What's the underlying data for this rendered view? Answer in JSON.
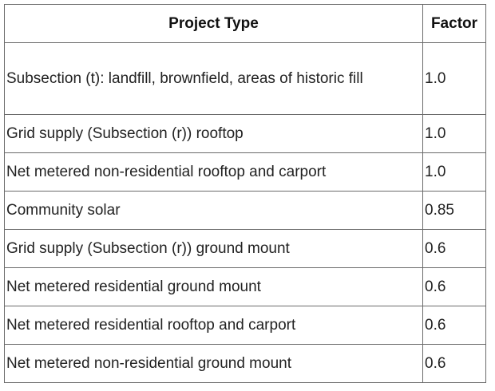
{
  "table": {
    "headers": {
      "type": "Project Type",
      "factor": "Factor"
    },
    "rows": [
      {
        "type": "Subsection (t): landfill, brownfield, areas of historic fill",
        "factor": "1.0"
      },
      {
        "type": "Grid supply (Subsection (r)) rooftop",
        "factor": "1.0"
      },
      {
        "type": "Net metered non-residential rooftop and carport",
        "factor": "1.0"
      },
      {
        "type": "Community solar",
        "factor": "0.85"
      },
      {
        "type": "Grid supply (Subsection (r)) ground mount",
        "factor": "0.6"
      },
      {
        "type": "Net metered residential ground mount",
        "factor": "0.6"
      },
      {
        "type": "Net metered residential rooftop and carport",
        "factor": "0.6"
      },
      {
        "type": "Net metered non-residential ground mount",
        "factor": "0.6"
      }
    ]
  }
}
